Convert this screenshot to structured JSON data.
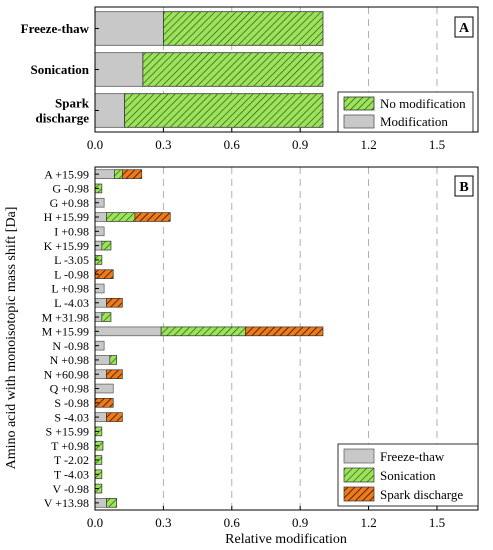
{
  "chart_data": [
    {
      "type": "bar",
      "orientation": "horizontal",
      "stacked": true,
      "panel_label": "A",
      "categories": [
        "Freeze-thaw",
        "Sonication",
        "Spark\ndischarge"
      ],
      "series": [
        {
          "name": "Modification",
          "values": [
            0.3,
            0.21,
            0.13
          ]
        },
        {
          "name": "No modification",
          "values": [
            0.7,
            0.79,
            0.87
          ]
        }
      ],
      "xlim": [
        0,
        1.68
      ],
      "xticks": [
        "0.0",
        "0.3",
        "0.6",
        "0.9",
        "1.2",
        "1.5"
      ],
      "legend": {
        "placement": "bottom-right",
        "entries": [
          "No modification",
          "Modification"
        ]
      },
      "grid": "dashed vertical"
    },
    {
      "type": "bar",
      "orientation": "horizontal",
      "stacked": true,
      "panel_label": "B",
      "categories": [
        "A +15.99",
        "G -0.98",
        "G +0.98",
        "H +15.99",
        "I +0.98",
        "K +15.99",
        "L -3.05",
        "L -0.98",
        "L +0.98",
        "L -4.03",
        "M +31.98",
        "M +15.99",
        "N -0.98",
        "N +0.98",
        "N +60.98",
        "Q +0.98",
        "S -0.98",
        "S -4.03",
        "S +15.99",
        "T +0.98",
        "T -2.02",
        "T -4.03",
        "V -0.98",
        "V +13.98"
      ],
      "series": [
        {
          "name": "Freeze-thaw",
          "values": [
            0.085,
            0,
            0.04,
            0.05,
            0.04,
            0.03,
            0,
            0,
            0.04,
            0.05,
            0.03,
            0.29,
            0.04,
            0.065,
            0.05,
            0.08,
            0,
            0.05,
            0,
            0,
            0,
            0,
            0,
            0.05
          ]
        },
        {
          "name": "Sonication",
          "values": [
            0.035,
            0.03,
            0,
            0.125,
            0,
            0.04,
            0.03,
            0,
            0,
            0,
            0.04,
            0.37,
            0,
            0.03,
            0,
            0,
            0,
            0,
            0.03,
            0.035,
            0.03,
            0.03,
            0.03,
            0.045
          ]
        },
        {
          "name": "Spark discharge",
          "values": [
            0.085,
            0,
            0,
            0.155,
            0,
            0,
            0,
            0.08,
            0,
            0.07,
            0,
            0.34,
            0,
            0,
            0.07,
            0,
            0.08,
            0.07,
            0,
            0,
            0,
            0,
            0,
            0
          ]
        }
      ],
      "xlim": [
        0,
        1.68
      ],
      "xticks": [
        "0.0",
        "0.3",
        "0.6",
        "0.9",
        "1.2",
        "1.5"
      ],
      "xlabel": "Relative modification",
      "ylabel": "Amino acid with monoisotopic mass shift [Da]",
      "legend": {
        "placement": "bottom-right",
        "entries": [
          "Freeze-thaw",
          "Sonication",
          "Spark discharge"
        ]
      },
      "grid": "dashed vertical"
    }
  ]
}
